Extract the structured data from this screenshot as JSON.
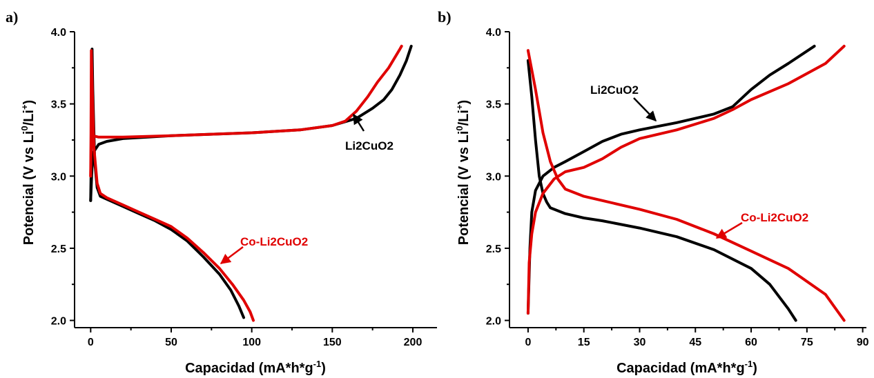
{
  "chart_data": [
    {
      "panel": "a)",
      "type": "line",
      "xlabel": "Capacidad (mA*h*g",
      "xlabel_sup": "-1",
      "xlabel_end": ")",
      "ylabel": "Potencial (V vs Li",
      "ylabel_sup1": "0",
      "ylabel_mid": "/Li",
      "ylabel_sup2": "+",
      "ylabel_end": ")",
      "xlim": [
        -10,
        215
      ],
      "ylim": [
        1.95,
        4.0
      ],
      "xticks": [
        0,
        50,
        100,
        150,
        200
      ],
      "xtick_labels": [
        "0",
        "50",
        "100",
        "150",
        "200"
      ],
      "yticks": [
        2.0,
        2.5,
        3.0,
        3.5,
        4.0
      ],
      "ytick_labels": [
        "2.0",
        "2.5",
        "3.0",
        "3.5",
        "4.0"
      ],
      "series": [
        {
          "name": "Li2CuO2",
          "color": "#000000",
          "segments": [
            [
              [
                0,
                2.83
              ],
              [
                0.3,
                3.05
              ],
              [
                0.6,
                3.5
              ],
              [
                0.9,
                3.88
              ],
              [
                1.3,
                3.6
              ],
              [
                2.5,
                3.1
              ],
              [
                4,
                2.92
              ],
              [
                6,
                2.86
              ],
              [
                10,
                2.84
              ],
              [
                20,
                2.79
              ],
              [
                30,
                2.74
              ],
              [
                40,
                2.69
              ],
              [
                50,
                2.63
              ],
              [
                60,
                2.55
              ],
              [
                70,
                2.44
              ],
              [
                80,
                2.32
              ],
              [
                87,
                2.21
              ],
              [
                92,
                2.1
              ],
              [
                95,
                2.02
              ]
            ],
            [
              [
                0,
                2.83
              ],
              [
                0.8,
                3.05
              ],
              [
                2,
                3.17
              ],
              [
                5,
                3.22
              ],
              [
                10,
                3.24
              ],
              [
                20,
                3.26
              ],
              [
                50,
                3.28
              ],
              [
                100,
                3.3
              ],
              [
                130,
                3.32
              ],
              [
                150,
                3.35
              ],
              [
                165,
                3.4
              ],
              [
                175,
                3.47
              ],
              [
                182,
                3.53
              ],
              [
                187,
                3.6
              ],
              [
                192,
                3.7
              ],
              [
                196,
                3.8
              ],
              [
                199,
                3.9
              ]
            ]
          ]
        },
        {
          "name": "Co-Li2CuO2",
          "color": "#e00000",
          "segments": [
            [
              [
                0,
                3.0
              ],
              [
                0.2,
                3.3
              ],
              [
                0.4,
                3.87
              ],
              [
                1,
                3.6
              ],
              [
                2,
                3.2
              ],
              [
                4,
                2.95
              ],
              [
                6,
                2.88
              ],
              [
                10,
                2.85
              ],
              [
                20,
                2.8
              ],
              [
                30,
                2.75
              ],
              [
                40,
                2.7
              ],
              [
                50,
                2.65
              ],
              [
                60,
                2.57
              ],
              [
                70,
                2.47
              ],
              [
                80,
                2.36
              ],
              [
                88,
                2.25
              ],
              [
                95,
                2.14
              ],
              [
                99,
                2.06
              ],
              [
                101,
                2.0
              ]
            ],
            [
              [
                0,
                3.0
              ],
              [
                0.5,
                3.32
              ],
              [
                1.2,
                3.28
              ],
              [
                5,
                3.27
              ],
              [
                20,
                3.27
              ],
              [
                50,
                3.28
              ],
              [
                100,
                3.3
              ],
              [
                130,
                3.32
              ],
              [
                150,
                3.35
              ],
              [
                158,
                3.38
              ],
              [
                165,
                3.45
              ],
              [
                172,
                3.55
              ],
              [
                178,
                3.65
              ],
              [
                185,
                3.75
              ],
              [
                192,
                3.88
              ],
              [
                193,
                3.9
              ]
            ]
          ]
        }
      ],
      "annotations": [
        {
          "text": "Li2CuO2",
          "color": "#000000"
        },
        {
          "text": "Co-Li2CuO2",
          "color": "#e00000"
        }
      ]
    },
    {
      "panel": "b)",
      "type": "line",
      "xlabel": "Capacidad (mA*h*g",
      "xlabel_sup": "-1",
      "xlabel_end": ")",
      "ylabel": "Potencial (V vs Li",
      "ylabel_sup1": "0",
      "ylabel_mid": "/Li",
      "ylabel_sup2": "+",
      "ylabel_end": ")",
      "xlim": [
        -5,
        91
      ],
      "ylim": [
        1.95,
        4.0
      ],
      "xticks": [
        0,
        15,
        30,
        45,
        60,
        75,
        90
      ],
      "xtick_labels": [
        "0",
        "15",
        "30",
        "45",
        "60",
        "75",
        "90"
      ],
      "yticks": [
        2.0,
        2.5,
        3.0,
        3.5,
        4.0
      ],
      "ytick_labels": [
        "2.0",
        "2.5",
        "3.0",
        "3.5",
        "4.0"
      ],
      "series": [
        {
          "name": "Li2CuO2",
          "color": "#000000",
          "segments": [
            [
              [
                0,
                3.8
              ],
              [
                1,
                3.55
              ],
              [
                2,
                3.25
              ],
              [
                3,
                3.0
              ],
              [
                4,
                2.88
              ],
              [
                5,
                2.82
              ],
              [
                6,
                2.78
              ],
              [
                10,
                2.74
              ],
              [
                15,
                2.71
              ],
              [
                20,
                2.69
              ],
              [
                30,
                2.64
              ],
              [
                40,
                2.58
              ],
              [
                50,
                2.49
              ],
              [
                60,
                2.36
              ],
              [
                65,
                2.25
              ],
              [
                70,
                2.08
              ],
              [
                72,
                2.0
              ]
            ],
            [
              [
                0,
                2.05
              ],
              [
                0.5,
                2.5
              ],
              [
                1,
                2.75
              ],
              [
                2,
                2.9
              ],
              [
                4,
                3.0
              ],
              [
                7,
                3.06
              ],
              [
                10,
                3.1
              ],
              [
                15,
                3.17
              ],
              [
                20,
                3.24
              ],
              [
                25,
                3.29
              ],
              [
                30,
                3.32
              ],
              [
                40,
                3.37
              ],
              [
                50,
                3.43
              ],
              [
                55,
                3.48
              ],
              [
                60,
                3.6
              ],
              [
                65,
                3.7
              ],
              [
                70,
                3.78
              ],
              [
                77,
                3.9
              ]
            ]
          ]
        },
        {
          "name": "Co-Li2CuO2",
          "color": "#e00000",
          "segments": [
            [
              [
                0,
                3.87
              ],
              [
                2,
                3.6
              ],
              [
                4,
                3.3
              ],
              [
                6,
                3.1
              ],
              [
                8,
                2.98
              ],
              [
                10,
                2.91
              ],
              [
                15,
                2.86
              ],
              [
                20,
                2.83
              ],
              [
                30,
                2.77
              ],
              [
                40,
                2.7
              ],
              [
                50,
                2.6
              ],
              [
                60,
                2.48
              ],
              [
                70,
                2.36
              ],
              [
                80,
                2.18
              ],
              [
                85,
                2.0
              ]
            ],
            [
              [
                0,
                2.05
              ],
              [
                0.3,
                2.4
              ],
              [
                1,
                2.6
              ],
              [
                2,
                2.75
              ],
              [
                4,
                2.88
              ],
              [
                7,
                2.98
              ],
              [
                10,
                3.03
              ],
              [
                15,
                3.06
              ],
              [
                20,
                3.12
              ],
              [
                25,
                3.2
              ],
              [
                30,
                3.26
              ],
              [
                40,
                3.32
              ],
              [
                50,
                3.4
              ],
              [
                55,
                3.46
              ],
              [
                60,
                3.53
              ],
              [
                70,
                3.64
              ],
              [
                80,
                3.78
              ],
              [
                85,
                3.9
              ]
            ]
          ]
        }
      ],
      "annotations": [
        {
          "text": "Li2CuO2",
          "color": "#000000"
        },
        {
          "text": "Co-Li2CuO2",
          "color": "#e00000"
        }
      ]
    }
  ]
}
